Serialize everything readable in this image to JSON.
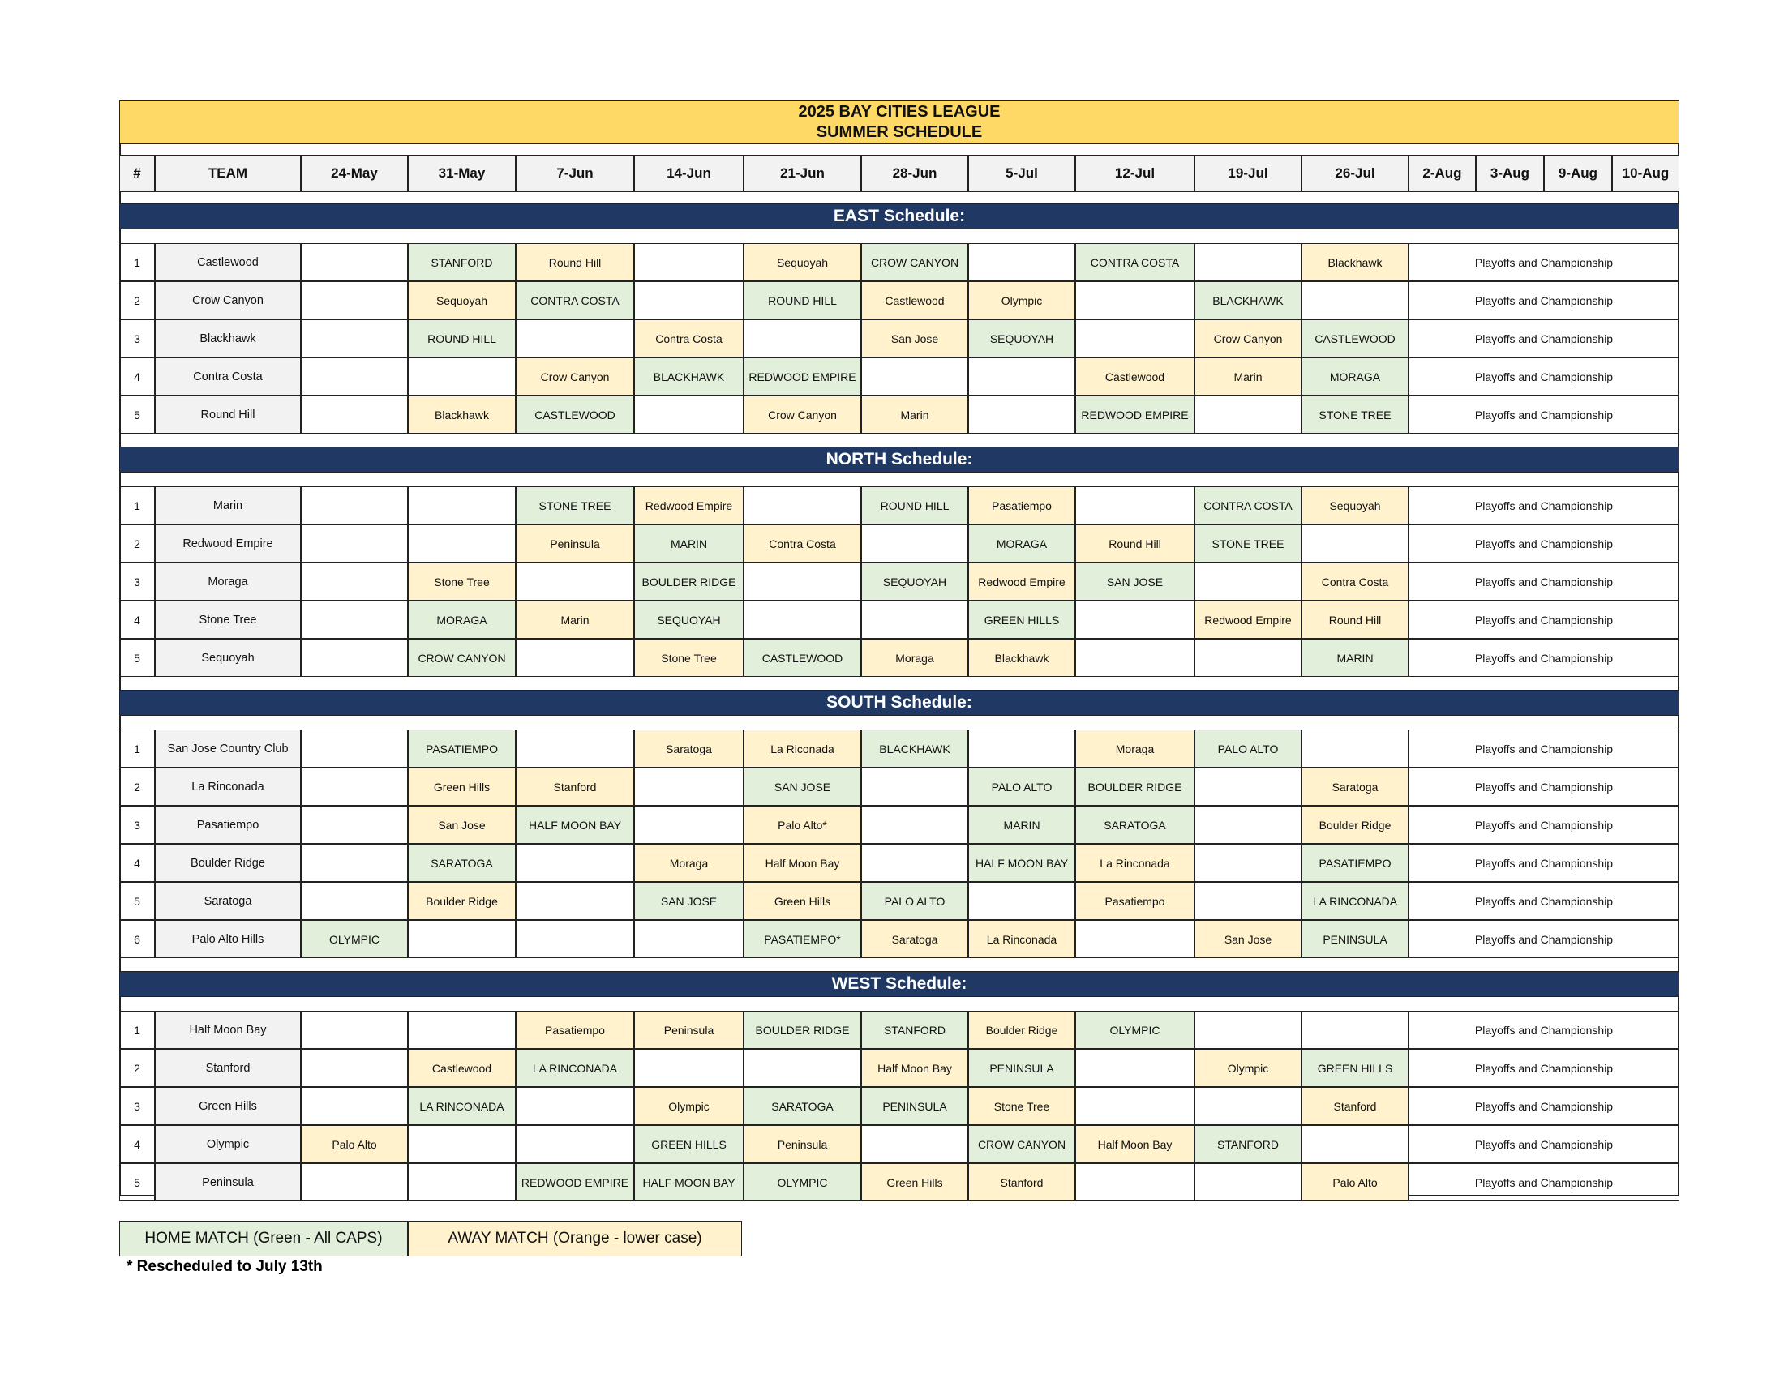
{
  "title": [
    "2025 BAY CITIES LEAGUE",
    "SUMMER SCHEDULE"
  ],
  "header": {
    "number": "#",
    "team": "TEAM",
    "dates": [
      "24-May",
      "31-May",
      "7-Jun",
      "14-Jun",
      "21-Jun",
      "28-Jun",
      "5-Jul",
      "12-Jul",
      "19-Jul",
      "26-Jul",
      "2-Aug",
      "3-Aug",
      "9-Aug",
      "10-Aug"
    ]
  },
  "playoffs": "Playoffs and Championship",
  "sections": [
    {
      "title": "EAST Schedule:",
      "rows": [
        {
          "num": 1,
          "team": "Castlewood",
          "cells": [
            null,
            "STANFORD",
            "Round Hill",
            null,
            "Sequoyah",
            "CROW CANYON",
            null,
            "CONTRA COSTA",
            null,
            "Blackhawk"
          ]
        },
        {
          "num": 2,
          "team": "Crow Canyon",
          "cells": [
            null,
            "Sequoyah",
            "CONTRA COSTA",
            null,
            "ROUND HILL",
            "Castlewood",
            "Olympic",
            null,
            "BLACKHAWK",
            null
          ]
        },
        {
          "num": 3,
          "team": "Blackhawk",
          "cells": [
            null,
            "ROUND HILL",
            null,
            "Contra Costa",
            null,
            "San Jose",
            "SEQUOYAH",
            null,
            "Crow Canyon",
            "CASTLEWOOD"
          ]
        },
        {
          "num": 4,
          "team": "Contra Costa",
          "cells": [
            null,
            null,
            "Crow Canyon",
            "BLACKHAWK",
            "REDWOOD EMPIRE",
            null,
            null,
            "Castlewood",
            "Marin",
            "MORAGA"
          ]
        },
        {
          "num": 5,
          "team": "Round Hill",
          "cells": [
            null,
            "Blackhawk",
            "CASTLEWOOD",
            null,
            "Crow Canyon",
            "Marin",
            null,
            "REDWOOD EMPIRE",
            null,
            "STONE TREE"
          ]
        }
      ]
    },
    {
      "title": "NORTH Schedule:",
      "rows": [
        {
          "num": 1,
          "team": "Marin",
          "cells": [
            null,
            null,
            "STONE TREE",
            "Redwood Empire",
            null,
            "ROUND HILL",
            "Pasatiempo",
            null,
            "CONTRA COSTA",
            "Sequoyah"
          ]
        },
        {
          "num": 2,
          "team": "Redwood Empire",
          "cells": [
            null,
            null,
            "Peninsula",
            "MARIN",
            "Contra Costa",
            null,
            "MORAGA",
            "Round Hill",
            "STONE TREE",
            null
          ]
        },
        {
          "num": 3,
          "team": "Moraga",
          "cells": [
            null,
            "Stone Tree",
            null,
            "BOULDER RIDGE",
            null,
            "SEQUOYAH",
            "Redwood Empire",
            "SAN JOSE",
            null,
            "Contra Costa"
          ]
        },
        {
          "num": 4,
          "team": "Stone Tree",
          "cells": [
            null,
            "MORAGA",
            "Marin",
            "SEQUOYAH",
            null,
            null,
            "GREEN HILLS",
            null,
            "Redwood Empire",
            "Round Hill"
          ]
        },
        {
          "num": 5,
          "team": "Sequoyah",
          "cells": [
            null,
            "CROW CANYON",
            null,
            "Stone Tree",
            "CASTLEWOOD",
            "Moraga",
            "Blackhawk",
            null,
            null,
            "MARIN"
          ]
        }
      ]
    },
    {
      "title": "SOUTH Schedule:",
      "rows": [
        {
          "num": 1,
          "team": "San Jose Country Club",
          "cells": [
            null,
            "PASATIEMPO",
            null,
            "Saratoga",
            "La Riconada",
            "BLACKHAWK",
            null,
            "Moraga",
            "PALO ALTO",
            null
          ]
        },
        {
          "num": 2,
          "team": "La Rinconada",
          "cells": [
            null,
            "Green Hills",
            "Stanford",
            null,
            "SAN JOSE",
            null,
            "PALO ALTO",
            "BOULDER RIDGE",
            null,
            "Saratoga"
          ]
        },
        {
          "num": 3,
          "team": "Pasatiempo",
          "cells": [
            null,
            "San Jose",
            "HALF MOON BAY",
            null,
            "Palo Alto*",
            null,
            "MARIN",
            "SARATOGA",
            null,
            "Boulder Ridge"
          ]
        },
        {
          "num": 4,
          "team": "Boulder Ridge",
          "cells": [
            null,
            "SARATOGA",
            null,
            "Moraga",
            "Half Moon Bay",
            null,
            "HALF MOON BAY",
            "La Rinconada",
            null,
            "PASATIEMPO"
          ]
        },
        {
          "num": 5,
          "team": "Saratoga",
          "cells": [
            null,
            "Boulder Ridge",
            null,
            "SAN JOSE",
            "Green Hills",
            "PALO ALTO",
            null,
            "Pasatiempo",
            null,
            "LA RINCONADA"
          ]
        },
        {
          "num": 6,
          "team": "Palo Alto Hills",
          "cells": [
            "OLYMPIC",
            null,
            null,
            null,
            "PASATIEMPO*",
            "Saratoga",
            "La Rinconada",
            null,
            "San Jose",
            "PENINSULA"
          ]
        }
      ]
    },
    {
      "title": "WEST Schedule:",
      "rows": [
        {
          "num": 1,
          "team": "Half Moon Bay",
          "cells": [
            null,
            null,
            "Pasatiempo",
            "Peninsula",
            "BOULDER RIDGE",
            "STANFORD",
            "Boulder Ridge",
            "OLYMPIC",
            null,
            null
          ]
        },
        {
          "num": 2,
          "team": "Stanford",
          "cells": [
            null,
            "Castlewood",
            "LA RINCONADA",
            null,
            null,
            "Half Moon Bay",
            "PENINSULA",
            null,
            "Olympic",
            "GREEN HILLS"
          ]
        },
        {
          "num": 3,
          "team": "Green Hills",
          "cells": [
            null,
            "LA RINCONADA",
            null,
            "Olympic",
            "SARATOGA",
            "PENINSULA",
            "Stone Tree",
            null,
            null,
            "Stanford"
          ]
        },
        {
          "num": 4,
          "team": "Olympic",
          "cells": [
            "Palo Alto",
            null,
            null,
            "GREEN HILLS",
            "Peninsula",
            null,
            "CROW CANYON",
            "Half Moon Bay",
            "STANFORD",
            null
          ]
        },
        {
          "num": 5,
          "team": "Peninsula",
          "cells": [
            null,
            null,
            "REDWOOD EMPIRE",
            "HALF MOON BAY",
            "OLYMPIC",
            "Green Hills",
            "Stanford",
            null,
            null,
            "Palo Alto"
          ]
        }
      ]
    }
  ],
  "legend": {
    "home": "HOME MATCH (Green - All CAPS)",
    "home_color": "#e2efda",
    "away": "AWAY MATCH (Orange - lower case)",
    "away_color": "#fff2cc"
  },
  "footnote": "* Rescheduled to July 13th"
}
